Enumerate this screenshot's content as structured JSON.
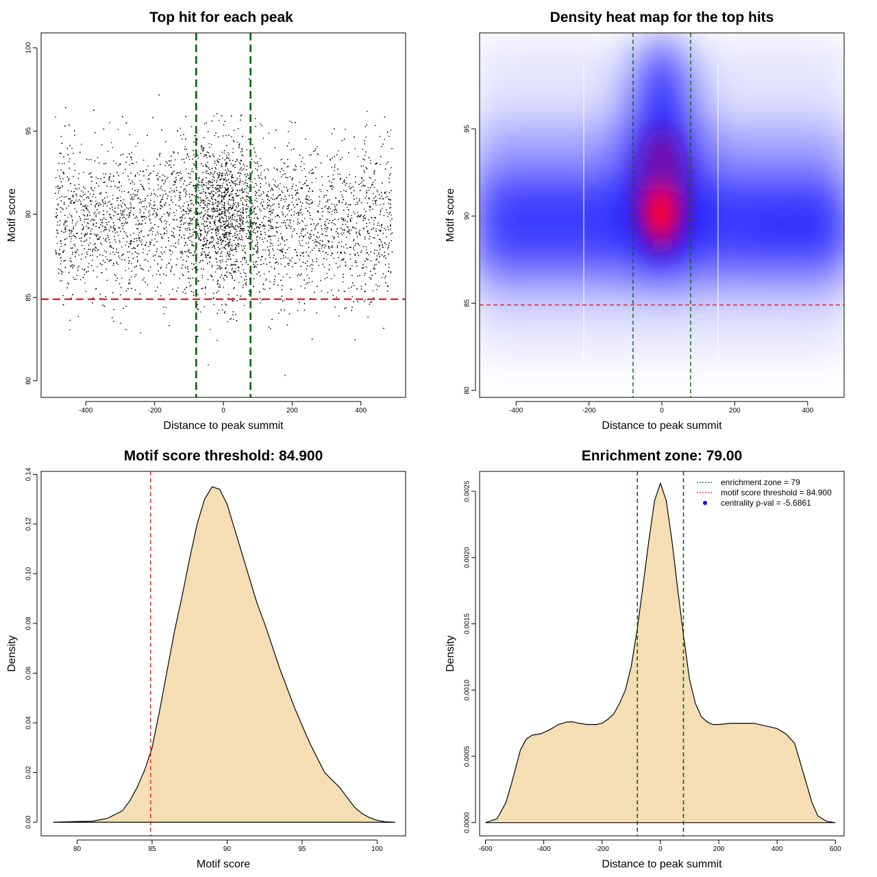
{
  "colors": {
    "points": "#000000",
    "threshold_line": "#e02020",
    "zone_line": "#006400",
    "density_fill": "#f5deb3",
    "density_stroke": "#000000",
    "heat_low": "#ffffff",
    "heat_mid": "#0000ff",
    "heat_high": "#ff0000",
    "legend_marker": "#0000ff"
  },
  "chart_data": [
    {
      "id": "scatter",
      "type": "scatter",
      "title": "Top hit for each peak",
      "xlabel": "Distance to peak summit",
      "ylabel": "Motif score",
      "xlim": [
        -530,
        530
      ],
      "ylim": [
        79.0,
        100.9
      ],
      "xticks": [
        "-400",
        "-200",
        "0",
        "200",
        "400"
      ],
      "yticks": [
        "80",
        "85",
        "90",
        "95",
        "100"
      ],
      "x_range_of_points": [
        -490,
        490
      ],
      "y_range_of_points": [
        80.2,
        99.9
      ],
      "center_y": 90,
      "approx_point_count": 7000,
      "threshold_y": 84.9,
      "zone_x": [
        -79,
        79
      ],
      "grid": false
    },
    {
      "id": "heatmap",
      "type": "heatmap",
      "title": "Density heat map for the top hits",
      "xlabel": "Distance to peak summit",
      "ylabel": "Motif score",
      "xlim": [
        -500,
        500
      ],
      "ylim": [
        79.6,
        100.5
      ],
      "xticks": [
        "-400",
        "-200",
        "0",
        "200",
        "400"
      ],
      "yticks": [
        "80",
        "85",
        "90",
        "95"
      ],
      "threshold_y": 84.9,
      "zone_x": [
        -79,
        79
      ],
      "grid": false
    },
    {
      "id": "score-density",
      "type": "area",
      "title": "Motif score threshold: 84.900",
      "xlabel": "Motif score",
      "ylabel": "Density",
      "xlim": [
        77.6,
        101.9
      ],
      "ylim": [
        -0.0055,
        0.1412
      ],
      "xticks": [
        "80",
        "85",
        "90",
        "95",
        "100"
      ],
      "yticks": [
        "0.00",
        "0.02",
        "0.04",
        "0.06",
        "0.08",
        "0.10",
        "0.12",
        "0.14"
      ],
      "x": [
        78.4,
        79.5,
        80.0,
        81.0,
        82.0,
        83.0,
        83.5,
        84.0,
        84.5,
        85.0,
        85.5,
        86.0,
        86.5,
        87.0,
        87.5,
        88.0,
        88.5,
        89.0,
        89.5,
        90.0,
        90.5,
        91.0,
        91.5,
        92.0,
        92.5,
        93.0,
        93.5,
        94.0,
        94.5,
        95.0,
        95.5,
        96.0,
        96.5,
        97.0,
        97.5,
        98.0,
        98.5,
        99.0,
        99.5,
        100.0,
        100.5,
        101.2
      ],
      "y": [
        0.0,
        0.0002,
        0.0003,
        0.0004,
        0.0015,
        0.0045,
        0.0085,
        0.014,
        0.021,
        0.03,
        0.045,
        0.061,
        0.077,
        0.091,
        0.106,
        0.12,
        0.13,
        0.135,
        0.134,
        0.128,
        0.118,
        0.108,
        0.098,
        0.088,
        0.08,
        0.071,
        0.062,
        0.054,
        0.046,
        0.039,
        0.032,
        0.026,
        0.02,
        0.017,
        0.014,
        0.01,
        0.006,
        0.0035,
        0.0018,
        0.0008,
        0.0002,
        0.0
      ],
      "threshold_x": 84.9,
      "grid": false
    },
    {
      "id": "distance-density",
      "type": "area",
      "title": "Enrichment zone: 79.00",
      "xlabel": "Distance to peak summit",
      "ylabel": "Density",
      "xlim": [
        -620,
        630
      ],
      "ylim": [
        -0.0001,
        0.00265
      ],
      "xticks": [
        "-600",
        "-400",
        "-200",
        "0",
        "200",
        "400",
        "600"
      ],
      "yticks": [
        "0.0000",
        "0.0005",
        "0.0010",
        "0.0015",
        "0.0020",
        "0.0025"
      ],
      "x": [
        -600,
        -560,
        -530,
        -510,
        -480,
        -460,
        -440,
        -410,
        -380,
        -350,
        -320,
        -300,
        -280,
        -250,
        -220,
        -200,
        -180,
        -160,
        -140,
        -120,
        -100,
        -80,
        -60,
        -40,
        -20,
        0,
        20,
        40,
        60,
        80,
        100,
        120,
        140,
        160,
        180,
        200,
        240,
        280,
        320,
        360,
        400,
        430,
        460,
        480,
        500,
        520,
        540,
        570,
        600
      ],
      "y": [
        0.0,
        3e-05,
        0.00015,
        0.0003,
        0.00055,
        0.00063,
        0.00066,
        0.00067,
        0.0007,
        0.00074,
        0.00076,
        0.00076,
        0.00075,
        0.00074,
        0.00074,
        0.00075,
        0.00078,
        0.00082,
        0.0009,
        0.001,
        0.00118,
        0.00145,
        0.00178,
        0.00212,
        0.00243,
        0.00256,
        0.00243,
        0.00212,
        0.00175,
        0.0014,
        0.00108,
        0.0009,
        0.0008,
        0.00076,
        0.00074,
        0.00074,
        0.00075,
        0.00075,
        0.00075,
        0.00073,
        0.00071,
        0.00067,
        0.0006,
        0.00045,
        0.0003,
        0.00015,
        5e-05,
        1e-05,
        0.0
      ],
      "zone_x": [
        -79,
        79
      ],
      "legend_position": "top-right",
      "legend": [
        "enrichment zone = 79",
        "motif score threshold = 84.900",
        "centrality p-val = -5.6861"
      ],
      "grid": false
    }
  ]
}
